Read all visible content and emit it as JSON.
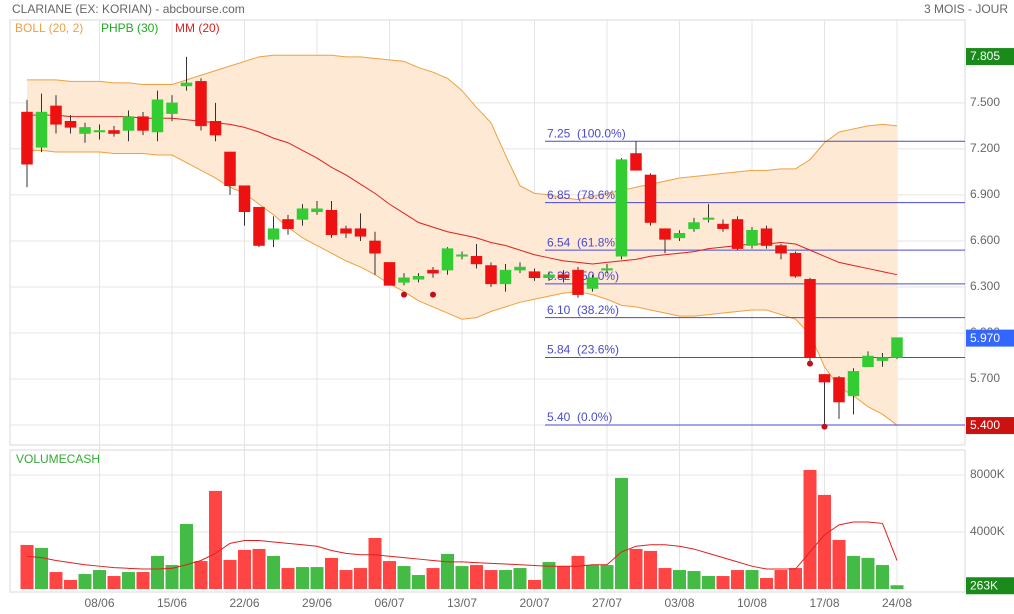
{
  "chart_data": {
    "type": "candlestick",
    "title": "CLARIANE (EX: KORIAN) - abcbourse.com",
    "subtitle": "3 MOIS - JOUR",
    "categories": [
      null,
      null,
      null,
      null,
      null,
      "08/06",
      null,
      null,
      null,
      null,
      "15/06",
      null,
      null,
      null,
      null,
      "22/06",
      null,
      null,
      null,
      null,
      "29/06",
      null,
      null,
      null,
      null,
      "06/07",
      null,
      null,
      null,
      null,
      "13/07",
      null,
      null,
      null,
      null,
      "20/07",
      null,
      null,
      null,
      null,
      "27/07",
      null,
      null,
      null,
      null,
      "03/08",
      null,
      null,
      null,
      null,
      "10/08",
      null,
      null,
      null,
      null,
      "17/08",
      null,
      null,
      null,
      null,
      "24/08"
    ],
    "open": [
      7.44,
      7.21,
      7.48,
      7.38,
      7.3,
      7.31,
      7.32,
      7.32,
      7.41,
      7.31,
      7.43,
      7.61,
      7.64,
      7.38,
      7.18,
      6.96,
      6.82,
      6.61,
      6.74,
      6.74,
      6.79,
      6.8,
      6.68,
      6.68,
      6.6,
      6.46,
      6.33,
      6.35,
      6.41,
      6.41,
      6.5,
      6.5,
      6.44,
      6.32,
      6.41,
      6.4,
      6.36,
      6.38,
      6.41,
      6.29,
      6.41,
      6.5,
      7.17,
      7.03,
      6.68,
      6.62,
      6.68,
      6.74,
      6.71,
      6.74,
      6.57,
      6.68,
      6.57,
      6.52,
      6.35,
      5.73,
      5.71,
      5.59,
      5.78,
      5.82,
      5.84
    ],
    "high": [
      7.52,
      7.56,
      7.55,
      7.42,
      7.37,
      7.36,
      7.35,
      7.45,
      7.44,
      7.58,
      7.55,
      7.8,
      7.66,
      7.5,
      7.18,
      6.96,
      6.82,
      6.76,
      6.77,
      6.84,
      6.86,
      6.86,
      6.7,
      6.78,
      6.66,
      6.46,
      6.39,
      6.39,
      6.43,
      6.56,
      6.53,
      6.58,
      6.46,
      6.45,
      6.46,
      6.42,
      6.4,
      6.41,
      6.43,
      6.38,
      6.45,
      7.14,
      7.25,
      7.04,
      6.68,
      6.67,
      6.75,
      6.84,
      6.74,
      6.76,
      6.69,
      6.7,
      6.58,
      6.53,
      6.36,
      5.73,
      5.72,
      5.77,
      5.88,
      5.87,
      5.97
    ],
    "low": [
      6.95,
      7.18,
      7.3,
      7.3,
      7.24,
      7.26,
      7.28,
      7.25,
      7.29,
      7.25,
      7.38,
      7.58,
      7.32,
      7.25,
      6.9,
      6.7,
      6.56,
      6.56,
      6.64,
      6.7,
      6.77,
      6.62,
      6.62,
      6.6,
      6.38,
      6.31,
      6.31,
      6.33,
      6.36,
      6.38,
      6.48,
      6.42,
      6.3,
      6.27,
      6.39,
      6.34,
      6.34,
      6.33,
      6.23,
      6.27,
      6.39,
      6.48,
      7.06,
      6.7,
      6.52,
      6.6,
      6.66,
      6.72,
      6.66,
      6.54,
      6.55,
      6.55,
      6.48,
      6.36,
      5.81,
      5.41,
      5.44,
      5.47,
      5.78,
      5.78,
      5.83
    ],
    "close": [
      7.1,
      7.44,
      7.36,
      7.34,
      7.34,
      7.32,
      7.3,
      7.41,
      7.32,
      7.52,
      7.5,
      7.63,
      7.35,
      7.29,
      6.96,
      6.79,
      6.57,
      6.68,
      6.68,
      6.81,
      6.81,
      6.64,
      6.65,
      6.63,
      6.52,
      6.31,
      6.36,
      6.37,
      6.39,
      6.55,
      6.51,
      6.45,
      6.32,
      6.41,
      6.43,
      6.36,
      6.38,
      6.36,
      6.25,
      6.36,
      6.42,
      7.13,
      7.06,
      6.72,
      6.61,
      6.65,
      6.72,
      6.75,
      6.68,
      6.55,
      6.67,
      6.57,
      6.52,
      6.37,
      5.84,
      5.68,
      5.55,
      5.75,
      5.85,
      5.84,
      5.97
    ],
    "up_color": "#33cc33",
    "down_color": "#ee1111",
    "bollinger": {
      "name": "BOLL (20, 2)",
      "color": "#f0a040",
      "fill": "#fde9d4",
      "upper": [
        7.65,
        7.65,
        7.65,
        7.64,
        7.64,
        7.64,
        7.63,
        7.63,
        7.62,
        7.62,
        7.62,
        7.65,
        7.68,
        7.71,
        7.74,
        7.77,
        7.8,
        7.81,
        7.81,
        7.81,
        7.81,
        7.81,
        7.8,
        7.8,
        7.79,
        7.78,
        7.77,
        7.73,
        7.7,
        7.66,
        7.58,
        7.47,
        7.37,
        7.16,
        6.96,
        6.91,
        6.9,
        6.88,
        6.87,
        6.89,
        6.91,
        6.93,
        6.95,
        6.97,
        6.99,
        7.01,
        7.02,
        7.03,
        7.04,
        7.05,
        7.06,
        7.06,
        7.07,
        7.07,
        7.13,
        7.24,
        7.31,
        7.33,
        7.35,
        7.36,
        7.35
      ],
      "lower": [
        7.19,
        7.19,
        7.18,
        7.18,
        7.18,
        7.18,
        7.17,
        7.17,
        7.17,
        7.16,
        7.16,
        7.11,
        7.06,
        7.01,
        6.95,
        6.91,
        6.84,
        6.77,
        6.69,
        6.62,
        6.57,
        6.52,
        6.47,
        6.43,
        6.38,
        6.32,
        6.27,
        6.21,
        6.17,
        6.13,
        6.09,
        6.1,
        6.14,
        6.17,
        6.2,
        6.22,
        6.24,
        6.26,
        6.27,
        6.25,
        6.22,
        6.18,
        6.17,
        6.15,
        6.13,
        6.11,
        6.11,
        6.12,
        6.13,
        6.14,
        6.15,
        6.15,
        6.12,
        6.09,
        5.99,
        5.78,
        5.65,
        5.59,
        5.52,
        5.47,
        5.4
      ]
    },
    "series": [
      {
        "name": "PHPB (30)",
        "color": "#22aa22",
        "marker_color": "#c0101a",
        "values": [
          null,
          null,
          null,
          null,
          null,
          null,
          null,
          null,
          null,
          null,
          null,
          null,
          null,
          null,
          null,
          null,
          null,
          null,
          null,
          null,
          null,
          null,
          null,
          null,
          null,
          null,
          6.25,
          null,
          6.25,
          null,
          null,
          null,
          null,
          null,
          null,
          null,
          null,
          null,
          null,
          null,
          null,
          null,
          null,
          null,
          null,
          null,
          null,
          null,
          null,
          null,
          null,
          null,
          null,
          null,
          5.8,
          5.39,
          null,
          null,
          null,
          null,
          null
        ]
      },
      {
        "name": "MM (20)",
        "color": "#e02020",
        "values": [
          7.42,
          7.42,
          7.42,
          7.41,
          7.41,
          7.41,
          7.41,
          7.41,
          7.4,
          7.4,
          7.4,
          7.39,
          7.38,
          7.37,
          7.36,
          7.34,
          7.31,
          7.27,
          7.24,
          7.19,
          7.14,
          7.08,
          7.03,
          6.97,
          6.91,
          6.84,
          6.78,
          6.72,
          6.69,
          6.66,
          6.64,
          6.62,
          6.59,
          6.57,
          6.54,
          6.51,
          6.49,
          6.47,
          6.46,
          6.45,
          6.46,
          6.47,
          6.48,
          6.5,
          6.51,
          6.52,
          6.53,
          6.55,
          6.56,
          6.57,
          6.58,
          6.58,
          6.59,
          6.58,
          6.54,
          6.5,
          6.46,
          6.44,
          6.42,
          6.4,
          6.38
        ]
      }
    ],
    "fibonacci": {
      "color": "#4a4ad0",
      "levels": [
        {
          "value": 7.25,
          "label": "7.25  (100.0%)"
        },
        {
          "value": 6.85,
          "label": "6.85  (78.6%)"
        },
        {
          "value": 6.54,
          "label": "6.54  (61.8%)"
        },
        {
          "value": 6.32,
          "label": "6.32  (50.0%)"
        },
        {
          "value": 6.1,
          "label": "6.10  (38.2%)"
        },
        {
          "value": 5.84,
          "label": "5.84  (23.6%)"
        },
        {
          "value": 5.4,
          "label": "5.40  (0.0%)"
        }
      ]
    },
    "ylim": [
      5.27,
      8.04
    ],
    "yticks": [
      {
        "value": 5.4,
        "label": "5.400"
      },
      {
        "value": 5.7,
        "label": "5.700"
      },
      {
        "value": 6.0,
        "label": "6.000"
      },
      {
        "value": 6.3,
        "label": "6.300"
      },
      {
        "value": 6.6,
        "label": "6.600"
      },
      {
        "value": 6.9,
        "label": "6.900"
      },
      {
        "value": 7.2,
        "label": "7.200"
      },
      {
        "value": 7.5,
        "label": "7.500"
      }
    ],
    "price_labels": [
      {
        "value": 7.805,
        "label": "7.805",
        "color": "#1a8a1a"
      },
      {
        "value": 5.97,
        "label": "5.970",
        "color": "#3366ff"
      },
      {
        "value": 5.4,
        "label": "5.400",
        "color": "#cc1111"
      }
    ],
    "grid": true,
    "volume": {
      "title": "VOLUMECASH",
      "title_color": "#33aa33",
      "up_color": "#44bb44",
      "down_color": "#ff4444",
      "values": [
        3090,
        2880,
        1190,
        630,
        1050,
        1330,
        910,
        1190,
        1190,
        2320,
        1680,
        4560,
        1960,
        6880,
        2040,
        2740,
        2810,
        2320,
        1470,
        1540,
        1540,
        2180,
        1330,
        1470,
        3580,
        1960,
        1610,
        980,
        1470,
        2460,
        1610,
        1680,
        1330,
        1330,
        1470,
        630,
        1890,
        1610,
        2320,
        1680,
        1680,
        7790,
        2810,
        2670,
        1470,
        1330,
        1260,
        910,
        910,
        1330,
        1330,
        770,
        1330,
        1470,
        8350,
        6600,
        3440,
        2320,
        2180,
        1680,
        263
      ],
      "ma": [
        2300,
        2200,
        2000,
        1850,
        1700,
        1600,
        1500,
        1450,
        1400,
        1400,
        1450,
        1700,
        2000,
        2500,
        3200,
        3400,
        3400,
        3300,
        3200,
        3100,
        3000,
        2700,
        2500,
        2400,
        2400,
        2300,
        2200,
        2100,
        2000,
        1900,
        1900,
        1850,
        1800,
        1750,
        1700,
        1650,
        1600,
        1600,
        1600,
        1700,
        1700,
        2600,
        3000,
        3100,
        3100,
        3000,
        2800,
        2500,
        2200,
        1900,
        1600,
        1400,
        1400,
        1400,
        2600,
        3800,
        4500,
        4700,
        4700,
        4600,
        2000
      ],
      "ma_color": "#e02020",
      "ylim": [
        0,
        9750
      ],
      "yticks": [
        {
          "value": 4000,
          "label": "4000K"
        },
        {
          "value": 8000,
          "label": "8000K"
        }
      ],
      "last_label": {
        "value": 263,
        "label": "263K",
        "color": "#1a8a1a"
      }
    }
  }
}
